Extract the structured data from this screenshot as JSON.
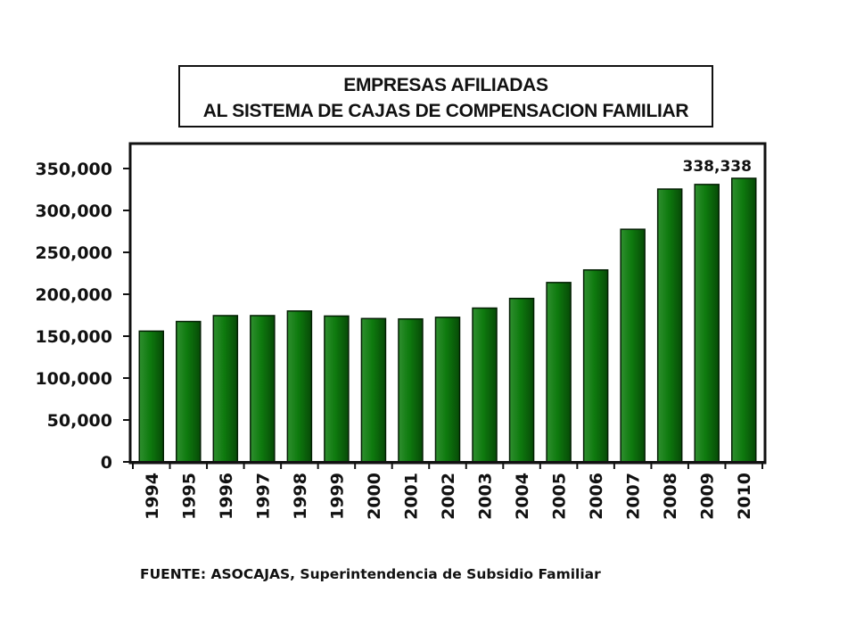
{
  "chart_data": {
    "type": "bar",
    "title_lines": [
      "EMPRESAS AFILIADAS",
      "AL SISTEMA DE CAJAS DE COMPENSACION FAMILIAR"
    ],
    "categories": [
      "1994",
      "1995",
      "1996",
      "1997",
      "1998",
      "1999",
      "2000",
      "2001",
      "2002",
      "2003",
      "2004",
      "2005",
      "2006",
      "2007",
      "2008",
      "2009",
      "2010"
    ],
    "values": [
      156000,
      167500,
      174500,
      174500,
      180000,
      174000,
      171000,
      170500,
      172500,
      183500,
      195000,
      214000,
      229000,
      277500,
      325500,
      331000,
      338338
    ],
    "ylim": [
      0,
      350000
    ],
    "yticks": [
      0,
      50000,
      100000,
      150000,
      200000,
      250000,
      300000,
      350000
    ],
    "ytick_labels": [
      "0",
      "50,000",
      "100,000",
      "150,000",
      "200,000",
      "250,000",
      "300,000",
      "350,000"
    ],
    "annotation": {
      "category": "2010",
      "text": "338,338"
    },
    "bar_color": "#0c6b0c",
    "grid": false,
    "xlabel": "",
    "ylabel": ""
  },
  "source_text": "FUENTE:  ASOCAJAS, Superintendencia de Subsidio Familiar"
}
